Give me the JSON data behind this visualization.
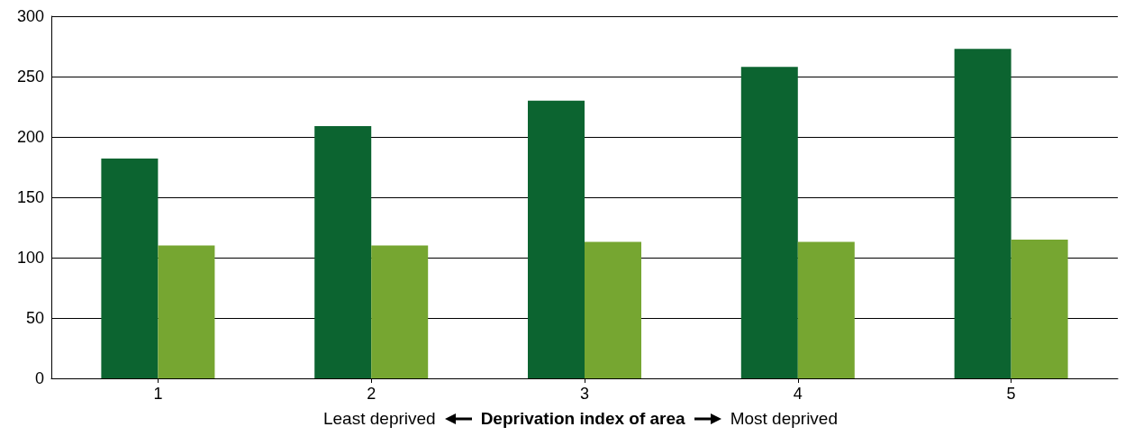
{
  "chart_data": {
    "type": "bar",
    "xlabel": "Deprivation index of area",
    "annotations": [
      "Least deprived",
      "Most deprived"
    ],
    "categories": [
      "1",
      "2",
      "3",
      "4",
      "5"
    ],
    "series": [
      {
        "color": "#0c6430",
        "values": [
          182,
          209,
          230,
          258,
          273
        ]
      },
      {
        "color": "#76a631",
        "values": [
          110,
          110,
          113,
          113,
          115
        ]
      }
    ],
    "ylim": [
      0,
      300
    ],
    "yticks": [
      0,
      50,
      100,
      150,
      200,
      250,
      300
    ],
    "grid": "y"
  }
}
